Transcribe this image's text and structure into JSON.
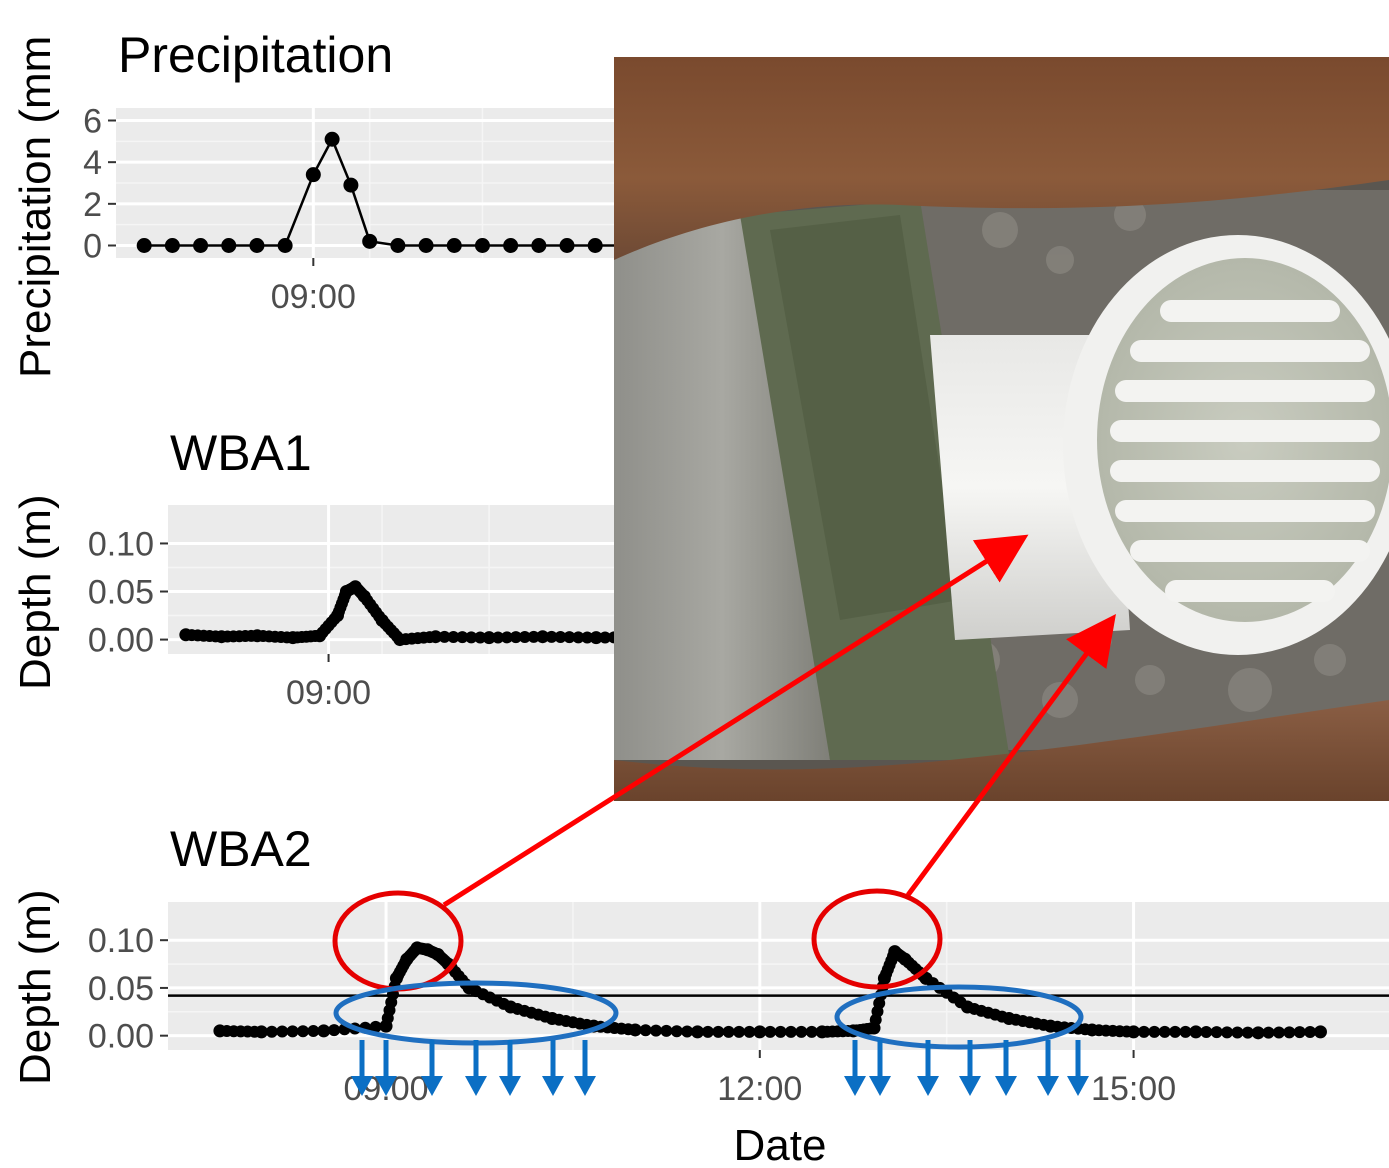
{
  "chart_data": [
    {
      "type": "scatter",
      "title": "Precipitation",
      "ylabel": "Precipitation (mm",
      "xlabel": "",
      "yticks": [
        "0",
        "2",
        "4",
        "6"
      ],
      "xticks": [
        "09:00"
      ],
      "ylim": [
        -0.6,
        6.6
      ],
      "grid": true,
      "x": [
        "07:30",
        "07:45",
        "08:00",
        "08:15",
        "08:30",
        "08:45",
        "09:00",
        "09:10",
        "09:20",
        "09:30",
        "09:45",
        "10:00",
        "10:15",
        "10:30",
        "10:45",
        "11:00",
        "11:15",
        "11:30",
        "11:45",
        "12:00"
      ],
      "y": [
        0,
        0,
        0,
        0,
        0,
        0,
        3.4,
        5.1,
        2.9,
        0.2,
        0,
        0,
        0,
        0,
        0,
        0,
        0,
        0,
        0,
        0
      ]
    },
    {
      "type": "scatter",
      "title": "WBA1",
      "ylabel": "Depth (m)",
      "xlabel": "",
      "yticks": [
        "0.00",
        "0.05",
        "0.10"
      ],
      "xticks": [
        "09:00"
      ],
      "ylim": [
        -0.015,
        0.14
      ],
      "grid": true,
      "x": [
        "07:40",
        "08:00",
        "08:20",
        "08:40",
        "08:55",
        "09:05",
        "09:10",
        "09:15",
        "09:20",
        "09:30",
        "09:40",
        "10:00",
        "10:30",
        "11:00",
        "11:30",
        "12:00"
      ],
      "y": [
        0.005,
        0.003,
        0.004,
        0.002,
        0.004,
        0.025,
        0.05,
        0.055,
        0.045,
        0.02,
        0.0,
        0.003,
        0.002,
        0.003,
        0.002,
        0.003
      ]
    },
    {
      "type": "scatter",
      "title": "WBA2",
      "ylabel": "Depth (m)",
      "xlabel": "Date",
      "yticks": [
        "0.00",
        "0.05",
        "0.10"
      ],
      "xticks": [
        "09:00",
        "12:00",
        "15:00"
      ],
      "ylim": [
        -0.015,
        0.14
      ],
      "grid": true,
      "reference_line_y": 0.042,
      "x": [
        "07:40",
        "08:00",
        "08:30",
        "09:00",
        "09:05",
        "09:10",
        "09:15",
        "09:20",
        "09:25",
        "09:30",
        "09:40",
        "10:00",
        "10:20",
        "10:40",
        "11:00",
        "11:30",
        "12:00",
        "12:30",
        "12:45",
        "12:55",
        "13:00",
        "13:05",
        "13:10",
        "13:20",
        "13:40",
        "14:00",
        "14:20",
        "14:40",
        "15:00",
        "15:30",
        "16:00",
        "16:30"
      ],
      "y": [
        0.005,
        0.004,
        0.005,
        0.01,
        0.06,
        0.08,
        0.092,
        0.09,
        0.085,
        0.075,
        0.05,
        0.03,
        0.018,
        0.01,
        0.006,
        0.004,
        0.004,
        0.004,
        0.005,
        0.008,
        0.06,
        0.088,
        0.08,
        0.06,
        0.03,
        0.018,
        0.01,
        0.006,
        0.004,
        0.004,
        0.003,
        0.004
      ]
    }
  ],
  "colors": {
    "panel": "#ebebeb",
    "grid": "#ffffff",
    "points": "#000000",
    "highlight_ellipse": "#e50000",
    "infiltration_ellipse": "#1f6fc0",
    "arrows_red": "#ff0000",
    "arrows_blue": "#0b6fc4"
  },
  "inset_photo": {
    "subject": "white PVC drain pipe with grated inlet inside concrete box"
  }
}
